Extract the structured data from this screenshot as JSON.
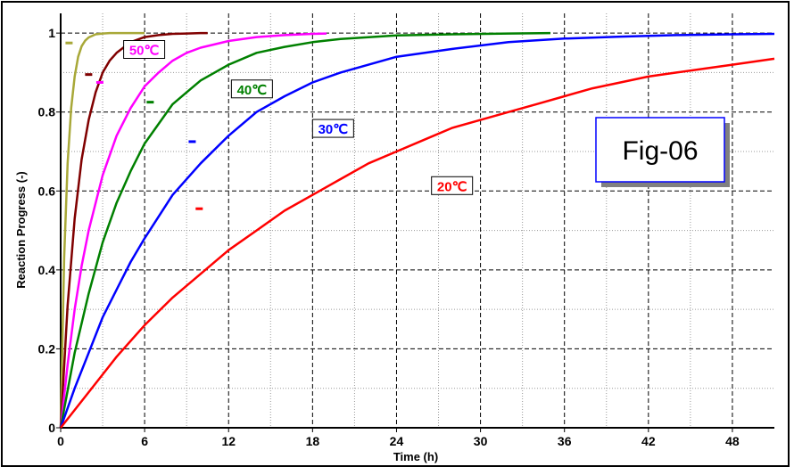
{
  "chart_data": {
    "type": "line",
    "title": "",
    "xlabel": "Time (h)",
    "ylabel": "Reaction Progress (-)",
    "xlim": [
      0,
      51
    ],
    "ylim": [
      0,
      1.05
    ],
    "xticks": [
      0,
      6,
      12,
      18,
      24,
      30,
      36,
      42,
      48
    ],
    "yticks": [
      0,
      0.2,
      0.4,
      0.6,
      0.8,
      1
    ],
    "ytick_labels": [
      "0",
      "0.2",
      "0.4",
      "0.6",
      "0.8",
      "1"
    ],
    "grid": true,
    "annotation": "Fig-06",
    "series": [
      {
        "name": "",
        "color": "#a8a838",
        "x": [
          0,
          0.25,
          0.5,
          0.75,
          1,
          1.25,
          1.5,
          1.75,
          2,
          2.5,
          3,
          3.5,
          4,
          4.5,
          5,
          5.5,
          6
        ],
        "y": [
          0,
          0.43,
          0.67,
          0.81,
          0.89,
          0.94,
          0.967,
          0.981,
          0.989,
          0.997,
          0.999,
          1,
          1,
          1,
          1,
          1,
          1
        ]
      },
      {
        "name": "",
        "color": "#800000",
        "x": [
          0,
          0.5,
          1,
          1.5,
          2,
          2.5,
          3,
          3.5,
          4,
          5,
          6,
          7,
          8,
          9,
          10,
          10.5
        ],
        "y": [
          0,
          0.31,
          0.53,
          0.68,
          0.78,
          0.85,
          0.9,
          0.93,
          0.95,
          0.977,
          0.99,
          0.995,
          0.998,
          0.999,
          1,
          1
        ]
      },
      {
        "name": "50℃",
        "color": "#ff00ff",
        "x": [
          0,
          0.5,
          1,
          1.5,
          2,
          3,
          4,
          5,
          6,
          7,
          8,
          9,
          10,
          12,
          14,
          16,
          18,
          19
        ],
        "y": [
          0,
          0.16,
          0.3,
          0.41,
          0.5,
          0.64,
          0.74,
          0.81,
          0.865,
          0.9,
          0.93,
          0.95,
          0.963,
          0.98,
          0.99,
          0.995,
          0.998,
          0.999
        ]
      },
      {
        "name": "40℃",
        "color": "#008000",
        "x": [
          0,
          1,
          2,
          3,
          4,
          5,
          6,
          7,
          8,
          9,
          10,
          12,
          14,
          16,
          18,
          20,
          24,
          28,
          32,
          35
        ],
        "y": [
          0,
          0.19,
          0.34,
          0.47,
          0.57,
          0.65,
          0.72,
          0.77,
          0.82,
          0.85,
          0.88,
          0.92,
          0.95,
          0.965,
          0.977,
          0.985,
          0.994,
          0.997,
          0.999,
          1
        ]
      },
      {
        "name": "30℃",
        "color": "#0000ff",
        "x": [
          0,
          1,
          2,
          3,
          4,
          5,
          6,
          8,
          10,
          12,
          14,
          16,
          18,
          20,
          24,
          28,
          32,
          36,
          40,
          44,
          48,
          51
        ],
        "y": [
          0,
          0.1,
          0.19,
          0.28,
          0.35,
          0.42,
          0.48,
          0.59,
          0.67,
          0.74,
          0.8,
          0.84,
          0.875,
          0.9,
          0.94,
          0.96,
          0.977,
          0.986,
          0.991,
          0.995,
          0.997,
          0.998
        ]
      },
      {
        "name": "20℃",
        "color": "#ff0000",
        "x": [
          0,
          2,
          4,
          6,
          8,
          10,
          12,
          14,
          16,
          18,
          20,
          22,
          24,
          26,
          28,
          30,
          32,
          34,
          36,
          38,
          40,
          42,
          44,
          46,
          48,
          50,
          51
        ],
        "y": [
          0,
          0.09,
          0.18,
          0.26,
          0.33,
          0.39,
          0.45,
          0.5,
          0.55,
          0.59,
          0.63,
          0.67,
          0.7,
          0.73,
          0.76,
          0.78,
          0.8,
          0.82,
          0.84,
          0.86,
          0.875,
          0.89,
          0.9,
          0.91,
          0.92,
          0.93,
          0.935
        ]
      }
    ]
  }
}
